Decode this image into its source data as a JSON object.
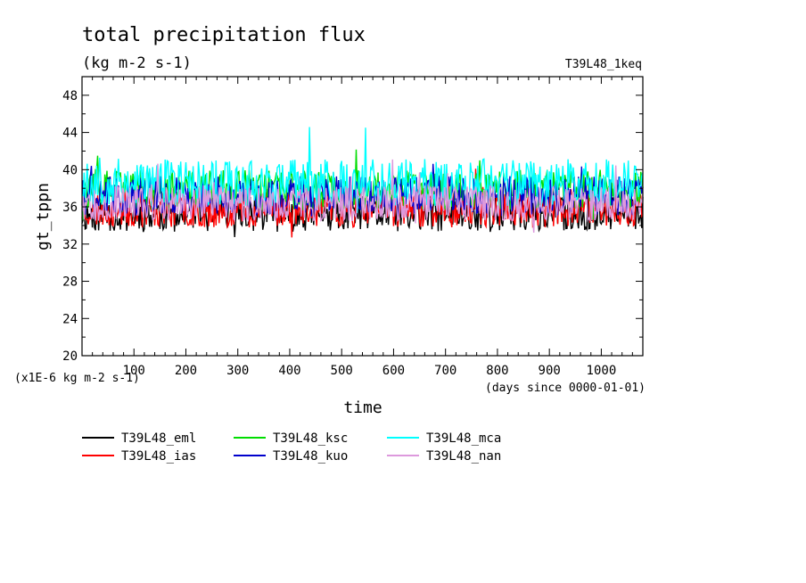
{
  "chart_data": {
    "type": "line",
    "title": "total precipitation flux",
    "units_label": "(kg m-2 s-1)",
    "experiment_label": "T39L48_1keq",
    "xlabel": "time",
    "x_units": "(days since 0000-01-01)",
    "ylabel": "gt_tppn",
    "y_scale_note": "(x1E-6 kg m-2 s-1)",
    "xlim": [
      0,
      1080
    ],
    "ylim": [
      20,
      50
    ],
    "x_ticks": [
      100,
      200,
      300,
      400,
      500,
      600,
      700,
      800,
      900,
      1000
    ],
    "y_ticks": [
      20,
      24,
      28,
      32,
      36,
      40,
      44,
      48
    ],
    "grid": false,
    "legend_position": "bottom",
    "series": [
      {
        "name": "T39L48_eml",
        "color": "#000000",
        "mean": 35.2,
        "amplitude": 1.9,
        "seed": 11
      },
      {
        "name": "T39L48_ias",
        "color": "#ff0000",
        "mean": 35.8,
        "amplitude": 2.0,
        "seed": 23
      },
      {
        "name": "T39L48_ksc",
        "color": "#00dd00",
        "mean": 37.8,
        "amplitude": 2.2,
        "seed": 37
      },
      {
        "name": "T39L48_kuo",
        "color": "#0000cc",
        "mean": 37.2,
        "amplitude": 2.1,
        "seed": 41
      },
      {
        "name": "T39L48_mca",
        "color": "#00ffff",
        "mean": 38.6,
        "amplitude": 2.6,
        "seed": 53
      },
      {
        "name": "T39L48_nan",
        "color": "#dd99dd",
        "mean": 36.4,
        "amplitude": 1.9,
        "seed": 67
      }
    ]
  }
}
